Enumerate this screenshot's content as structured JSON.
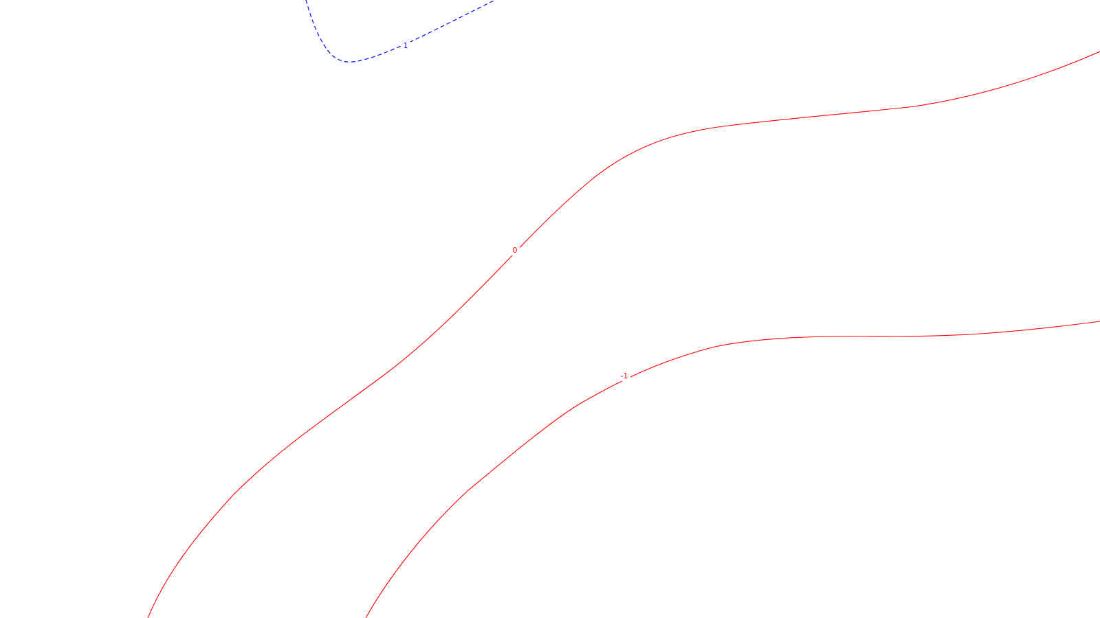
{
  "chart_data": {
    "type": "contour",
    "title": "",
    "xlabel": "",
    "ylabel": "",
    "grid": false,
    "legend": "none",
    "contours": [
      {
        "level_label": "1",
        "color": "#0000ff",
        "style": "dashed"
      },
      {
        "level_label": "0",
        "color": "#ff0000",
        "style": "solid"
      },
      {
        "level_label": "-1",
        "color": "#ff0000",
        "style": "solid"
      }
    ]
  }
}
